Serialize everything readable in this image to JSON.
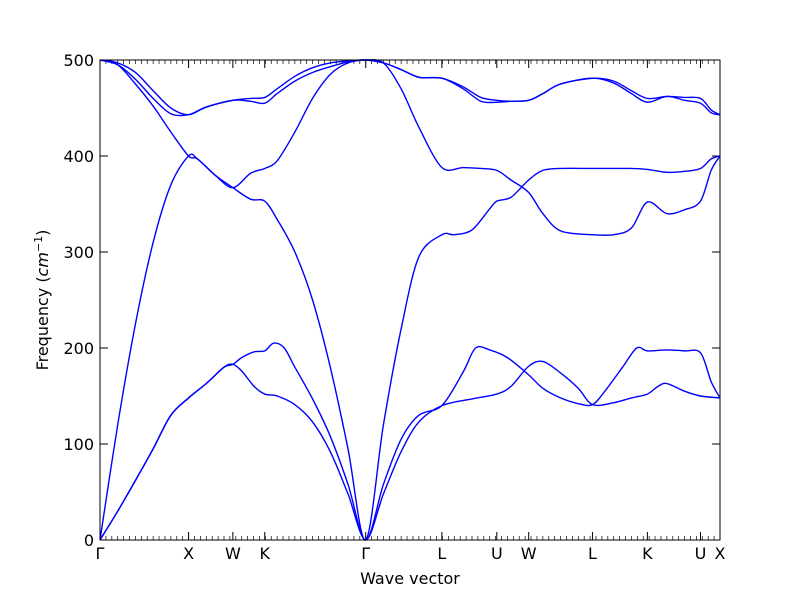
{
  "chart_data": {
    "type": "line",
    "xlabel": "Wave vector",
    "ylabel": "Frequency",
    "ylabel_unit": "cm",
    "ylabel_unit_exp": "−1",
    "ylim": [
      0,
      500
    ],
    "yticks": [
      0,
      100,
      200,
      300,
      400,
      500
    ],
    "xlim": [
      0,
      3.5
    ],
    "grid": false,
    "line_color": "#0000ff",
    "high_symmetry_points": [
      {
        "label": "Γ",
        "x": 0.0
      },
      {
        "label": "X",
        "x": 0.5
      },
      {
        "label": "W",
        "x": 0.75
      },
      {
        "label": "K",
        "x": 0.93
      },
      {
        "label": "Γ",
        "x": 1.5
      },
      {
        "label": "L",
        "x": 1.93
      },
      {
        "label": "U",
        "x": 2.24
      },
      {
        "label": "W",
        "x": 2.42
      },
      {
        "label": "L",
        "x": 2.78
      },
      {
        "label": "K",
        "x": 3.09
      },
      {
        "label": "U",
        "x": 3.39
      },
      {
        "label": "X",
        "x": 3.5
      }
    ],
    "series": [
      {
        "points": [
          [
            0,
            0
          ],
          [
            0.1,
            30
          ],
          [
            0.2,
            62
          ],
          [
            0.3,
            95
          ],
          [
            0.4,
            130
          ],
          [
            0.5,
            148
          ],
          [
            0.6,
            163
          ],
          [
            0.7,
            180
          ],
          [
            0.75,
            183
          ],
          [
            0.8,
            176
          ],
          [
            0.87,
            160
          ],
          [
            0.93,
            152
          ],
          [
            1.0,
            150
          ],
          [
            1.1,
            141
          ],
          [
            1.2,
            123
          ],
          [
            1.3,
            92
          ],
          [
            1.4,
            48
          ],
          [
            1.5,
            0
          ],
          [
            1.6,
            48
          ],
          [
            1.7,
            92
          ],
          [
            1.8,
            123
          ],
          [
            1.93,
            140
          ],
          [
            2.1,
            147
          ],
          [
            2.24,
            152
          ],
          [
            2.32,
            160
          ],
          [
            2.42,
            181
          ],
          [
            2.5,
            186
          ],
          [
            2.6,
            174
          ],
          [
            2.7,
            158
          ],
          [
            2.78,
            141
          ],
          [
            2.9,
            143
          ],
          [
            3.0,
            148
          ],
          [
            3.09,
            152
          ],
          [
            3.15,
            160
          ],
          [
            3.2,
            163
          ],
          [
            3.3,
            155
          ],
          [
            3.39,
            150
          ],
          [
            3.5,
            148
          ]
        ]
      },
      {
        "points": [
          [
            0,
            0
          ],
          [
            0.1,
            30
          ],
          [
            0.2,
            62
          ],
          [
            0.3,
            95
          ],
          [
            0.4,
            130
          ],
          [
            0.5,
            148
          ],
          [
            0.6,
            163
          ],
          [
            0.7,
            180
          ],
          [
            0.75,
            183
          ],
          [
            0.8,
            190
          ],
          [
            0.87,
            196
          ],
          [
            0.93,
            197
          ],
          [
            0.98,
            205
          ],
          [
            1.04,
            200
          ],
          [
            1.1,
            180
          ],
          [
            1.2,
            147
          ],
          [
            1.3,
            108
          ],
          [
            1.4,
            58
          ],
          [
            1.5,
            0
          ],
          [
            1.6,
            58
          ],
          [
            1.7,
            105
          ],
          [
            1.8,
            130
          ],
          [
            1.93,
            140
          ],
          [
            2.05,
            175
          ],
          [
            2.12,
            200
          ],
          [
            2.2,
            198
          ],
          [
            2.3,
            190
          ],
          [
            2.42,
            172
          ],
          [
            2.5,
            158
          ],
          [
            2.6,
            148
          ],
          [
            2.7,
            142
          ],
          [
            2.78,
            141
          ],
          [
            2.85,
            155
          ],
          [
            2.95,
            180
          ],
          [
            3.03,
            200
          ],
          [
            3.09,
            197
          ],
          [
            3.2,
            198
          ],
          [
            3.3,
            197
          ],
          [
            3.39,
            195
          ],
          [
            3.45,
            165
          ],
          [
            3.5,
            148
          ]
        ]
      },
      {
        "points": [
          [
            0,
            0
          ],
          [
            0.1,
            120
          ],
          [
            0.2,
            225
          ],
          [
            0.3,
            310
          ],
          [
            0.4,
            370
          ],
          [
            0.5,
            400
          ],
          [
            0.55,
            397
          ],
          [
            0.65,
            380
          ],
          [
            0.75,
            367
          ],
          [
            0.85,
            355
          ],
          [
            0.93,
            353
          ],
          [
            1.0,
            334
          ],
          [
            1.1,
            300
          ],
          [
            1.2,
            250
          ],
          [
            1.3,
            180
          ],
          [
            1.4,
            95
          ],
          [
            1.5,
            0
          ],
          [
            1.6,
            120
          ],
          [
            1.7,
            220
          ],
          [
            1.8,
            295
          ],
          [
            1.93,
            318
          ],
          [
            2.0,
            318
          ],
          [
            2.1,
            323
          ],
          [
            2.2,
            345
          ],
          [
            2.24,
            353
          ],
          [
            2.32,
            357
          ],
          [
            2.42,
            375
          ],
          [
            2.5,
            385
          ],
          [
            2.6,
            387
          ],
          [
            2.78,
            387
          ],
          [
            2.9,
            387
          ],
          [
            3.0,
            387
          ],
          [
            3.09,
            386
          ],
          [
            3.2,
            383
          ],
          [
            3.3,
            384
          ],
          [
            3.39,
            387
          ],
          [
            3.45,
            397
          ],
          [
            3.5,
            400
          ]
        ]
      },
      {
        "points": [
          [
            0,
            500
          ],
          [
            0.1,
            495
          ],
          [
            0.2,
            475
          ],
          [
            0.3,
            452
          ],
          [
            0.4,
            425
          ],
          [
            0.5,
            400
          ],
          [
            0.55,
            397
          ],
          [
            0.65,
            380
          ],
          [
            0.75,
            367
          ],
          [
            0.85,
            382
          ],
          [
            0.93,
            387
          ],
          [
            1.0,
            395
          ],
          [
            1.1,
            425
          ],
          [
            1.2,
            460
          ],
          [
            1.3,
            485
          ],
          [
            1.4,
            497
          ],
          [
            1.5,
            500
          ],
          [
            1.6,
            497
          ],
          [
            1.7,
            470
          ],
          [
            1.8,
            430
          ],
          [
            1.93,
            388
          ],
          [
            2.05,
            388
          ],
          [
            2.15,
            387
          ],
          [
            2.24,
            385
          ],
          [
            2.32,
            375
          ],
          [
            2.42,
            362
          ],
          [
            2.5,
            340
          ],
          [
            2.6,
            322
          ],
          [
            2.78,
            318
          ],
          [
            2.9,
            318
          ],
          [
            3.0,
            325
          ],
          [
            3.09,
            352
          ],
          [
            3.2,
            340
          ],
          [
            3.3,
            344
          ],
          [
            3.39,
            353
          ],
          [
            3.45,
            385
          ],
          [
            3.5,
            400
          ]
        ]
      },
      {
        "points": [
          [
            0,
            500
          ],
          [
            0.1,
            495
          ],
          [
            0.2,
            480
          ],
          [
            0.3,
            460
          ],
          [
            0.4,
            444
          ],
          [
            0.5,
            443
          ],
          [
            0.6,
            451
          ],
          [
            0.75,
            458
          ],
          [
            0.85,
            457
          ],
          [
            0.93,
            455
          ],
          [
            1.0,
            465
          ],
          [
            1.1,
            478
          ],
          [
            1.2,
            487
          ],
          [
            1.3,
            493
          ],
          [
            1.4,
            498
          ],
          [
            1.5,
            500
          ],
          [
            1.6,
            497
          ],
          [
            1.7,
            490
          ],
          [
            1.8,
            482
          ],
          [
            1.93,
            481
          ],
          [
            2.05,
            470
          ],
          [
            2.15,
            457
          ],
          [
            2.24,
            456
          ],
          [
            2.32,
            457
          ],
          [
            2.42,
            458
          ],
          [
            2.5,
            465
          ],
          [
            2.6,
            475
          ],
          [
            2.78,
            481
          ],
          [
            2.9,
            476
          ],
          [
            3.0,
            465
          ],
          [
            3.09,
            456
          ],
          [
            3.2,
            462
          ],
          [
            3.3,
            458
          ],
          [
            3.39,
            455
          ],
          [
            3.45,
            445
          ],
          [
            3.5,
            443
          ]
        ]
      },
      {
        "points": [
          [
            0,
            500
          ],
          [
            0.1,
            497
          ],
          [
            0.2,
            487
          ],
          [
            0.3,
            468
          ],
          [
            0.4,
            450
          ],
          [
            0.5,
            443
          ],
          [
            0.6,
            451
          ],
          [
            0.75,
            458
          ],
          [
            0.85,
            460
          ],
          [
            0.93,
            461
          ],
          [
            1.0,
            470
          ],
          [
            1.1,
            483
          ],
          [
            1.2,
            492
          ],
          [
            1.3,
            497
          ],
          [
            1.4,
            499
          ],
          [
            1.5,
            500
          ],
          [
            1.6,
            497
          ],
          [
            1.7,
            490
          ],
          [
            1.8,
            482
          ],
          [
            1.93,
            481
          ],
          [
            2.05,
            472
          ],
          [
            2.15,
            461
          ],
          [
            2.24,
            458
          ],
          [
            2.32,
            457
          ],
          [
            2.42,
            458
          ],
          [
            2.5,
            465
          ],
          [
            2.6,
            475
          ],
          [
            2.78,
            481
          ],
          [
            2.9,
            478
          ],
          [
            3.0,
            468
          ],
          [
            3.09,
            460
          ],
          [
            3.2,
            462
          ],
          [
            3.3,
            461
          ],
          [
            3.39,
            460
          ],
          [
            3.45,
            448
          ],
          [
            3.5,
            443
          ]
        ]
      }
    ]
  }
}
